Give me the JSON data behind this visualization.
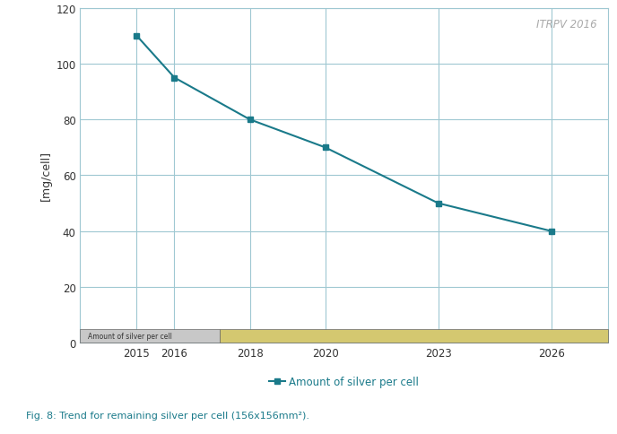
{
  "x": [
    2015,
    2016,
    2018,
    2020,
    2023,
    2026
  ],
  "y": [
    110,
    95,
    80,
    70,
    50,
    40
  ],
  "line_color": "#1a7a8a",
  "marker_color": "#1a7a8a",
  "ylabel": "[mg/cell]",
  "ylim": [
    0,
    120
  ],
  "yticks": [
    0,
    20,
    40,
    60,
    80,
    100,
    120
  ],
  "xlim": [
    2013.5,
    2027.5
  ],
  "xticks": [
    2015,
    2016,
    2018,
    2020,
    2023,
    2026
  ],
  "watermark": "ITRPV 2016",
  "bar_label": "Amount of silver per cell",
  "bar_gray_end": 2017.2,
  "bar_gray_color": "#c8c8c8",
  "bar_yellow_color": "#d4c870",
  "bar_border_color": "#666666",
  "left_bar_color": "#006f82",
  "caption": "Fig. 8: Trend for remaining silver per cell (156x156mm²).",
  "caption_color": "#1a7a8a",
  "orange_bar_color": "#e8820a",
  "background_color": "#ffffff",
  "grid_color": "#9fc8d2",
  "plot_bg_color": "#ffffff",
  "fig_width": 6.88,
  "fig_height": 4.85,
  "dpi": 100
}
